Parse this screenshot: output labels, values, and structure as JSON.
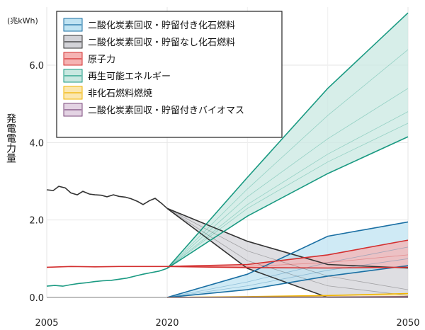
{
  "chart_data": {
    "type": "area",
    "unit_label": "(兆kWh)",
    "ylabel": "発電電力量",
    "xlim": [
      2005,
      2050
    ],
    "ylim": [
      0,
      7.5
    ],
    "x_ticks": [
      2005,
      2020,
      2050
    ],
    "x_tick_labels": [
      "2005",
      "2020",
      "2050"
    ],
    "x_minor": [
      2030,
      2040
    ],
    "y_ticks": [
      0,
      2,
      4,
      6
    ],
    "y_tick_labels": [
      "0.0",
      "2.0",
      "4.0",
      "6.0"
    ],
    "legend_position": "top-left",
    "legend": [
      {
        "label": "二酸化炭素回収・貯留付き化石燃料",
        "fill": "#bfe3f2",
        "line": "#1a6fa3"
      },
      {
        "label": "二酸化炭素回収・貯留なし化石燃料",
        "fill": "#d3d3d8",
        "line": "#333333"
      },
      {
        "label": "原子力",
        "fill": "#f5b3b3",
        "line": "#d32f2f"
      },
      {
        "label": "再生可能エネルギー",
        "fill": "#c9e8e1",
        "line": "#1a9a82"
      },
      {
        "label": "非化石燃料燃焼",
        "fill": "#fbe7b0",
        "line": "#f0b400"
      },
      {
        "label": "二酸化炭素回収・貯留付きバイオマス",
        "fill": "#e3d3e3",
        "line": "#7b4a7b"
      }
    ],
    "series": [
      {
        "legend_index": 1,
        "history": {
          "x": [
            2005,
            2005.8,
            2006.5,
            2007.3,
            2008,
            2008.8,
            2009.5,
            2010.3,
            2011,
            2011.8,
            2012.5,
            2013.3,
            2014,
            2014.8,
            2015.5,
            2016.3,
            2017,
            2017.8,
            2018.5,
            2019.3,
            2020
          ],
          "y": [
            2.78,
            2.76,
            2.87,
            2.83,
            2.7,
            2.65,
            2.74,
            2.67,
            2.65,
            2.64,
            2.6,
            2.65,
            2.61,
            2.59,
            2.55,
            2.48,
            2.4,
            2.5,
            2.56,
            2.43,
            2.3
          ]
        },
        "band": {
          "x": [
            2020,
            2030,
            2040,
            2050
          ],
          "upper": [
            2.3,
            1.45,
            0.9,
            0.76
          ],
          "lower": [
            2.3,
            0.75,
            0.0,
            0.0
          ]
        },
        "scenarios": [
          [
            2.3,
            1.45,
            0.85,
            0.76
          ],
          [
            2.3,
            0.75,
            0.0,
            0.0
          ],
          [
            2.3,
            1.2,
            0.55,
            0.2
          ],
          [
            2.3,
            0.95,
            0.3,
            0.05
          ]
        ]
      },
      {
        "legend_index": 3,
        "history": {
          "x": [
            2005,
            2006,
            2007,
            2008,
            2009,
            2010,
            2011,
            2012,
            2013,
            2014,
            2015,
            2016,
            2017,
            2018,
            2019,
            2020
          ],
          "y": [
            0.29,
            0.31,
            0.29,
            0.33,
            0.36,
            0.38,
            0.41,
            0.43,
            0.44,
            0.47,
            0.5,
            0.55,
            0.6,
            0.64,
            0.68,
            0.75
          ]
        },
        "band": {
          "x": [
            2020,
            2030,
            2040,
            2050
          ],
          "upper": [
            0.75,
            3.1,
            5.4,
            7.35
          ],
          "lower": [
            0.75,
            2.1,
            3.2,
            4.15
          ]
        },
        "scenarios": [
          [
            0.75,
            3.1,
            5.4,
            7.35
          ],
          [
            0.75,
            2.1,
            3.2,
            4.15
          ],
          [
            0.75,
            2.6,
            4.1,
            5.4
          ],
          [
            0.75,
            2.4,
            3.7,
            4.8
          ],
          [
            0.75,
            2.8,
            4.7,
            6.4
          ],
          [
            0.75,
            2.3,
            3.5,
            4.5
          ]
        ]
      },
      {
        "legend_index": 0,
        "band": {
          "x": [
            2020,
            2030,
            2040,
            2050
          ],
          "upper": [
            0.0,
            0.6,
            1.58,
            1.95
          ],
          "lower": [
            0.0,
            0.2,
            0.55,
            0.82
          ]
        },
        "scenarios": [
          [
            0.0,
            0.6,
            1.58,
            1.95
          ],
          [
            0.0,
            0.2,
            0.55,
            0.82
          ],
          [
            0.0,
            0.4,
            0.9,
            1.3
          ],
          [
            0.0,
            0.3,
            0.7,
            1.0
          ]
        ]
      },
      {
        "legend_index": 2,
        "history": {
          "x": [
            2005,
            2008,
            2011,
            2014,
            2017,
            2020
          ],
          "y": [
            0.78,
            0.8,
            0.79,
            0.8,
            0.8,
            0.8
          ]
        },
        "band": {
          "x": [
            2020,
            2030,
            2040,
            2050
          ],
          "upper": [
            0.8,
            0.85,
            1.1,
            1.48
          ],
          "lower": [
            0.8,
            0.77,
            0.76,
            0.78
          ]
        },
        "scenarios": [
          [
            0.8,
            0.85,
            1.1,
            1.48
          ],
          [
            0.8,
            0.77,
            0.76,
            0.78
          ],
          [
            0.8,
            0.8,
            0.9,
            1.1
          ]
        ]
      },
      {
        "legend_index": 4,
        "band": {
          "x": [
            2020,
            2030,
            2040,
            2050
          ],
          "upper": [
            0.0,
            0.02,
            0.05,
            0.1
          ],
          "lower": [
            0.0,
            0.0,
            0.01,
            0.02
          ]
        },
        "scenarios": [
          [
            0.0,
            0.02,
            0.05,
            0.1
          ],
          [
            0.0,
            0.0,
            0.01,
            0.02
          ]
        ]
      },
      {
        "legend_index": 5,
        "band": {
          "x": [
            2020,
            2030,
            2040,
            2050
          ],
          "upper": [
            0.0,
            0.01,
            0.01,
            0.02
          ],
          "lower": [
            0.0,
            0.0,
            0.0,
            0.0
          ]
        },
        "scenarios": [
          [
            0.0,
            0.01,
            0.01,
            0.02
          ],
          [
            0.0,
            0.0,
            0.0,
            0.0
          ]
        ]
      }
    ]
  }
}
